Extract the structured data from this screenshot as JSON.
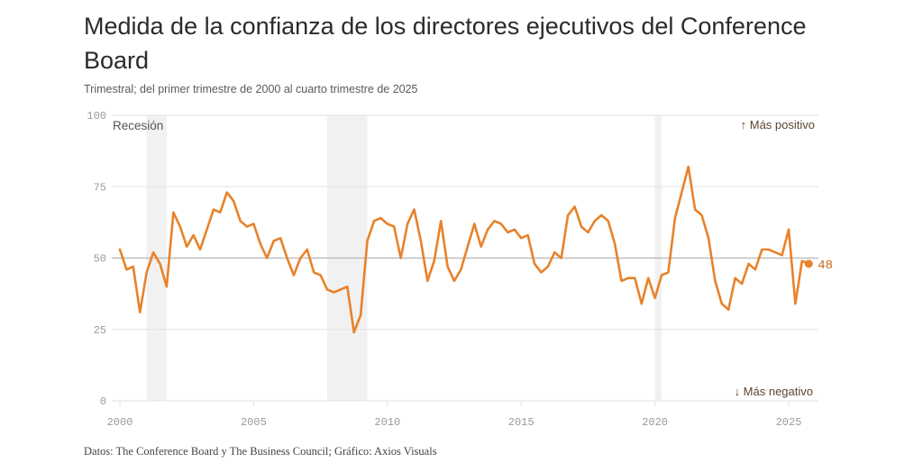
{
  "header": {
    "title": "Medida de la confianza de los directores ejecutivos del Conference Board",
    "subtitle": "Trimestral; del primer trimestre de 2000 al cuarto trimestre de 2025"
  },
  "footer": {
    "source": "Datos: The Conference Board y The Business Council; Gráfico: Axios Visuals"
  },
  "colors": {
    "line": "#e8822a",
    "recession": "#f1f1f1",
    "grid": "#e2e2e2",
    "midline": "#b5b5b5",
    "end_label": "#c8671a"
  },
  "chart_data": {
    "type": "line",
    "title": "Medida de la confianza de los directores ejecutivos del Conference Board",
    "subtitle": "Trimestral; del primer trimestre de 2000 al cuarto trimestre de 2025",
    "xlabel": "",
    "ylabel": "",
    "xlim": [
      2000,
      2026
    ],
    "ylim": [
      0,
      100
    ],
    "x_ticks": [
      2000,
      2005,
      2010,
      2015,
      2020,
      2025
    ],
    "x_tick_labels": [
      "2000",
      "2005",
      "2010",
      "2015",
      "2020",
      "2025"
    ],
    "y_ticks": [
      0,
      25,
      50,
      75,
      100
    ],
    "y_tick_labels": [
      "0",
      "25",
      "50",
      "75",
      "100"
    ],
    "grid": true,
    "reference_line": 50,
    "annotations": {
      "recession_label": "Recesión",
      "positive_label": "↑ Más positivo",
      "negative_label": "↓ Más negativo",
      "end_value_label": "48"
    },
    "recessions": [
      {
        "start": 2001.0,
        "end": 2001.75
      },
      {
        "start": 2007.75,
        "end": 2009.25
      },
      {
        "start": 2020.0,
        "end": 2020.25
      }
    ],
    "series": [
      {
        "name": "Confianza de los directores ejecutivos",
        "start_year": 2000.0,
        "step": 0.25,
        "values": [
          53,
          46,
          47,
          31,
          45,
          52,
          48,
          40,
          66,
          61,
          54,
          58,
          53,
          60,
          67,
          66,
          73,
          70,
          63,
          61,
          62,
          55,
          50,
          56,
          57,
          50,
          44,
          50,
          53,
          45,
          44,
          39,
          38,
          39,
          40,
          24,
          30,
          56,
          63,
          64,
          62,
          61,
          50,
          62,
          67,
          56,
          42,
          49,
          63,
          47,
          42,
          46,
          54,
          62,
          54,
          60,
          63,
          62,
          59,
          60,
          57,
          58,
          48,
          45,
          47,
          52,
          50,
          65,
          68,
          61,
          59,
          63,
          65,
          63,
          55,
          42,
          43,
          43,
          34,
          43,
          36,
          44,
          45,
          64,
          73,
          82,
          67,
          65,
          57,
          42,
          34,
          32,
          43,
          41,
          48,
          46,
          53,
          53,
          52,
          51,
          60,
          34,
          49,
          48
        ]
      }
    ]
  }
}
